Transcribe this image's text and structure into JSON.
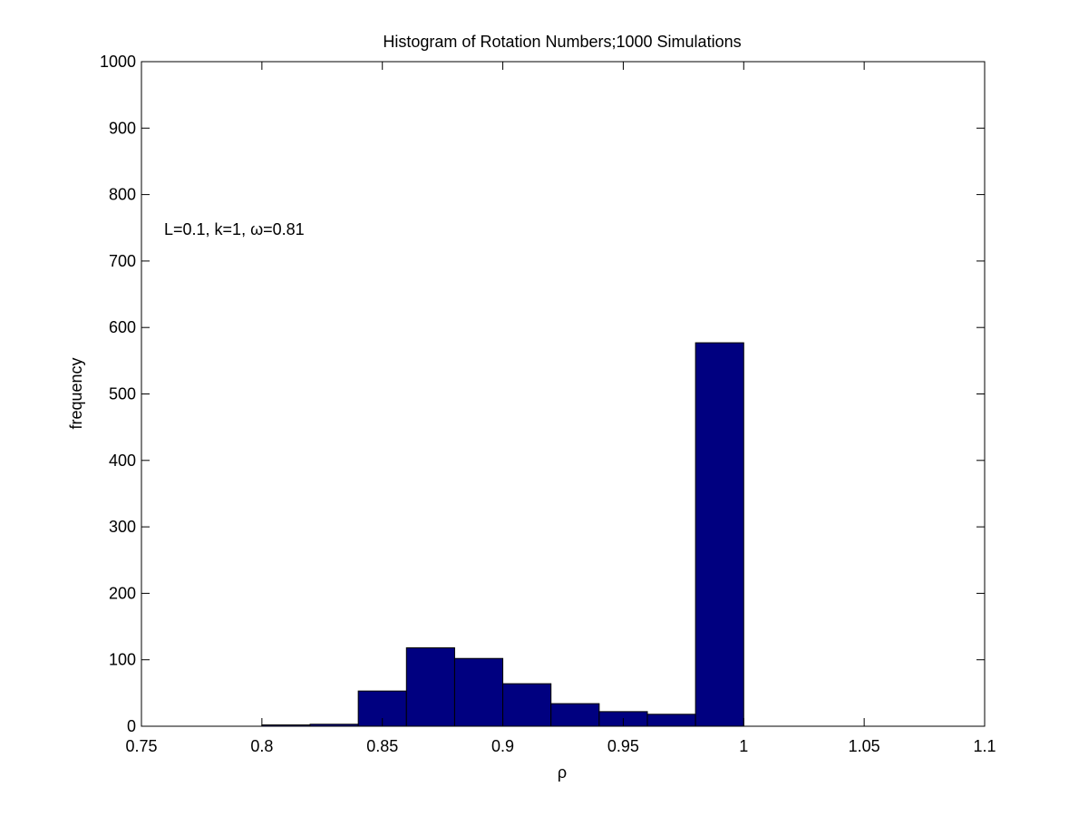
{
  "chart_data": {
    "type": "bar",
    "title": "Histogram of Rotation Numbers;1000 Simulations",
    "xlabel": "ρ",
    "ylabel": "frequency",
    "annotation": "L=0.1, k=1, ω=0.81",
    "xlim": [
      0.75,
      1.1
    ],
    "ylim": [
      0,
      1000
    ],
    "xticks": [
      0.75,
      0.8,
      0.85,
      0.9,
      0.95,
      1,
      1.05,
      1.1
    ],
    "xtick_labels": [
      "0.75",
      "0.8",
      "0.85",
      "0.9",
      "0.95",
      "1",
      "1.05",
      "1.1"
    ],
    "yticks": [
      0,
      100,
      200,
      300,
      400,
      500,
      600,
      700,
      800,
      900,
      1000
    ],
    "ytick_labels": [
      "0",
      "100",
      "200",
      "300",
      "400",
      "500",
      "600",
      "700",
      "800",
      "900",
      "1000"
    ],
    "bin_edges": [
      0.8,
      0.82,
      0.84,
      0.86,
      0.88,
      0.9,
      0.92,
      0.94,
      0.96,
      0.98,
      1.0
    ],
    "values": [
      2,
      3,
      53,
      118,
      102,
      64,
      34,
      22,
      18,
      577
    ],
    "bar_color": "#000080",
    "grid": false,
    "legend": "none"
  }
}
